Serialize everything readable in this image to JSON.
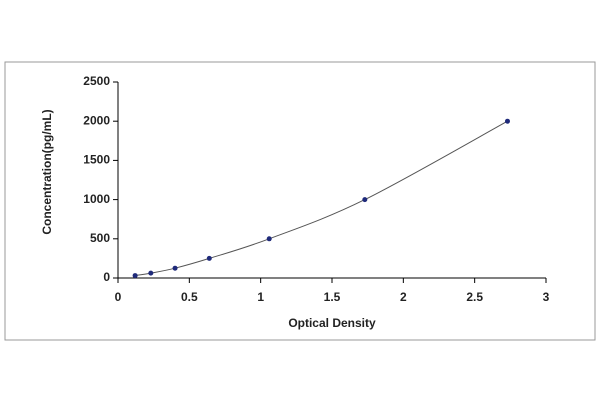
{
  "chart_data": {
    "type": "scatter",
    "x": [
      0.12,
      0.23,
      0.4,
      0.64,
      1.06,
      1.73,
      2.73
    ],
    "y": [
      31,
      62,
      125,
      250,
      500,
      1000,
      2000
    ],
    "color": "#1f2a7a",
    "line_color": "#555555",
    "smooth_line": true,
    "xlabel": "Optical Density",
    "ylabel": "Concentration(pg/mL)",
    "xlim": [
      0,
      3
    ],
    "ylim": [
      0,
      2500
    ],
    "xticks": [
      0,
      0.5,
      1,
      1.5,
      2,
      2.5,
      3
    ],
    "yticks": [
      0,
      500,
      1000,
      1500,
      2000,
      2500
    ],
    "grid": false
  }
}
